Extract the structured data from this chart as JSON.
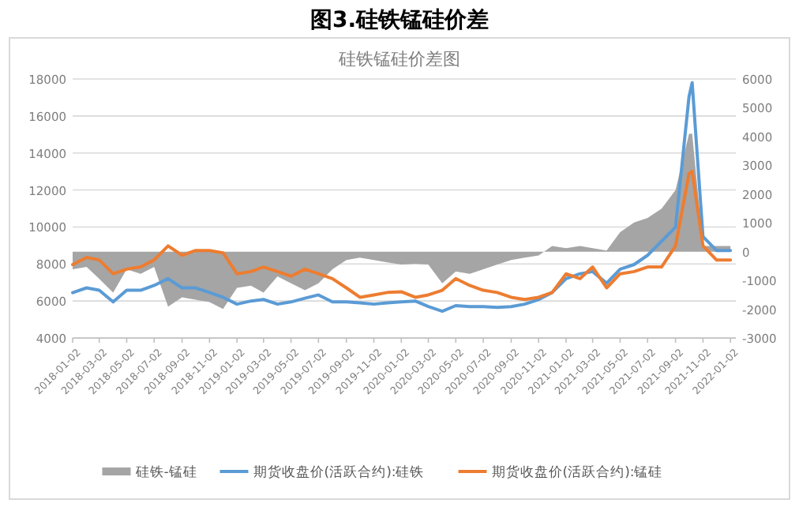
{
  "chart_data": {
    "type": "line",
    "title": "图3.硅铁锰硅价差",
    "subtitle": "硅铁锰硅价差图",
    "x": [
      "2018-01-02",
      "2018-02-02",
      "2018-03-02",
      "2018-04-02",
      "2018-05-02",
      "2018-06-02",
      "2018-07-02",
      "2018-08-02",
      "2018-09-02",
      "2018-10-02",
      "2018-11-02",
      "2018-12-02",
      "2019-01-02",
      "2019-02-02",
      "2019-03-02",
      "2019-04-02",
      "2019-05-02",
      "2019-06-02",
      "2019-07-02",
      "2019-08-02",
      "2019-09-02",
      "2019-10-02",
      "2019-11-02",
      "2019-12-02",
      "2020-01-02",
      "2020-02-02",
      "2020-03-02",
      "2020-04-02",
      "2020-05-02",
      "2020-06-02",
      "2020-07-02",
      "2020-08-02",
      "2020-09-02",
      "2020-10-02",
      "2020-11-02",
      "2020-12-02",
      "2021-01-02",
      "2021-02-02",
      "2021-03-02",
      "2021-04-02",
      "2021-05-02",
      "2021-06-02",
      "2021-07-02",
      "2021-08-02",
      "2021-09-02",
      "2021-10-02",
      "2021-10-09",
      "2021-11-02",
      "2021-12-02",
      "2022-01-02"
    ],
    "xlim": [
      "2018-01-02",
      "2022-01-14"
    ],
    "xticks": [
      "2018-01-02",
      "2018-03-02",
      "2018-05-02",
      "2018-07-02",
      "2018-09-02",
      "2018-11-02",
      "2019-01-02",
      "2019-03-02",
      "2019-05-02",
      "2019-07-02",
      "2019-09-02",
      "2019-11-02",
      "2020-01-02",
      "2020-03-02",
      "2020-05-02",
      "2020-07-02",
      "2020-09-02",
      "2020-11-02",
      "2021-01-02",
      "2021-03-02",
      "2021-05-02",
      "2021-07-02",
      "2021-09-02",
      "2021-11-02",
      "2022-01-02"
    ],
    "ylim": [
      4000,
      18000
    ],
    "yticks": [
      4000,
      6000,
      8000,
      10000,
      12000,
      14000,
      16000,
      18000
    ],
    "y2lim": [
      -3000,
      6000
    ],
    "y2ticks": [
      -3000,
      -2000,
      -1000,
      0,
      1000,
      2000,
      3000,
      4000,
      5000,
      6000
    ],
    "grid": "y",
    "legend": "bottom",
    "series": [
      {
        "name": "硅铁-锰硅",
        "type": "area",
        "axis": "y2",
        "color": "#a5a5a5",
        "values": [
          -610,
          -530,
          -940,
          -1420,
          -610,
          -770,
          -530,
          -1910,
          -1590,
          -1670,
          -1750,
          -1990,
          -1260,
          -1180,
          -1420,
          -860,
          -1100,
          -1340,
          -1100,
          -610,
          -290,
          -210,
          -290,
          -370,
          -450,
          -420,
          -450,
          -1100,
          -690,
          -770,
          -610,
          -450,
          -290,
          -210,
          -130,
          200,
          120,
          200,
          120,
          40,
          680,
          1010,
          1170,
          1490,
          2140,
          4090,
          4100,
          200,
          200,
          200
        ]
      },
      {
        "name": "期货收盘价(活跃合约):硅铁",
        "color": "#5b9bd5",
        "values": [
          6450,
          6710,
          6580,
          5950,
          6580,
          6580,
          6840,
          7210,
          6710,
          6710,
          6460,
          6200,
          5830,
          6000,
          6080,
          5830,
          5950,
          6150,
          6330,
          5950,
          5950,
          5900,
          5830,
          5900,
          5950,
          6000,
          5700,
          5450,
          5750,
          5700,
          5700,
          5650,
          5700,
          5830,
          6080,
          6460,
          7210,
          7470,
          7590,
          6960,
          7720,
          7970,
          8470,
          9230,
          9990,
          17040,
          17800,
          9480,
          8730,
          8730
        ]
      },
      {
        "name": "期货收盘价(活跃合约):锰硅",
        "color": "#ed7d31",
        "values": [
          7970,
          8350,
          8220,
          7470,
          7720,
          7840,
          8220,
          8980,
          8470,
          8730,
          8730,
          8600,
          7470,
          7590,
          7840,
          7590,
          7340,
          7720,
          7470,
          7210,
          6710,
          6200,
          6330,
          6460,
          6500,
          6200,
          6330,
          6580,
          7210,
          6840,
          6580,
          6460,
          6200,
          6080,
          6200,
          6460,
          7470,
          7210,
          7840,
          6710,
          7470,
          7590,
          7840,
          7840,
          8980,
          12880,
          13010,
          8980,
          8220,
          8220
        ]
      }
    ]
  }
}
